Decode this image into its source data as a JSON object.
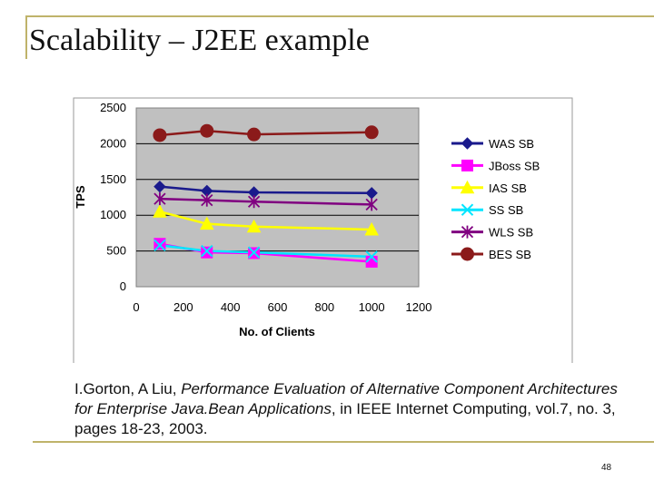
{
  "slide": {
    "title": "Scalability – J2EE example",
    "page_number": "48",
    "citation": {
      "authors": "I.Gorton, A Liu, ",
      "title_italic": "Performance Evaluation of Alternative Component Architectures for Enterprise Java.Bean Applications",
      "rest": ", in IEEE Internet Computing, vol.7, no. 3, pages 18-23, 2003."
    }
  },
  "chart_data": {
    "type": "line",
    "title": "",
    "xlabel": "No. of Clients",
    "ylabel": "TPS",
    "xlim": [
      0,
      1200
    ],
    "ylim": [
      0,
      2500
    ],
    "x_ticks": [
      0,
      200,
      400,
      600,
      800,
      1000,
      1200
    ],
    "y_ticks": [
      0,
      500,
      1000,
      1500,
      2000,
      2500
    ],
    "grid": "horizontal",
    "legend_position": "right",
    "series": [
      {
        "name": "WAS SB",
        "color": "#1a1a8c",
        "marker": "diamond",
        "x": [
          100,
          300,
          500,
          1000
        ],
        "y": [
          1400,
          1340,
          1320,
          1310
        ]
      },
      {
        "name": "JBoss SB",
        "color": "#ff00ff",
        "marker": "square",
        "x": [
          100,
          300,
          500,
          1000
        ],
        "y": [
          600,
          480,
          470,
          350
        ]
      },
      {
        "name": "IAS SB",
        "color": "#ffff00",
        "marker": "triangle",
        "x": [
          100,
          300,
          500,
          1000
        ],
        "y": [
          1050,
          880,
          840,
          800
        ]
      },
      {
        "name": "SS SB",
        "color": "#00e5ff",
        "marker": "x",
        "x": [
          100,
          300,
          500,
          1000
        ],
        "y": [
          580,
          500,
          480,
          420
        ]
      },
      {
        "name": "WLS SB",
        "color": "#800080",
        "marker": "star",
        "x": [
          100,
          300,
          500,
          1000
        ],
        "y": [
          1230,
          1210,
          1190,
          1150
        ]
      },
      {
        "name": "BES SB",
        "color": "#8b1a1a",
        "marker": "circle",
        "x": [
          100,
          300,
          500,
          1000
        ],
        "y": [
          2120,
          2180,
          2130,
          2160
        ]
      }
    ]
  }
}
